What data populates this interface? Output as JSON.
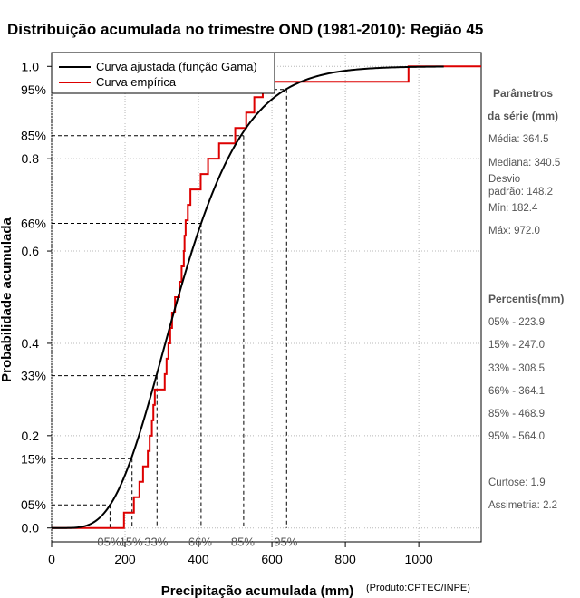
{
  "chart_data": {
    "type": "line",
    "title": "Distribuição acumulada no trimestre OND (1981-2010): Região 45",
    "xlabel": "Precipitação acumulada (mm)",
    "ylabel": "Probabilidade acumulada",
    "credit": "(Produto:CPTEC/INPE)",
    "xlim": [
      0,
      1170
    ],
    "ylim": [
      -0.03,
      1.03
    ],
    "x_ticks": [
      {
        "value": 0,
        "label": "0"
      },
      {
        "value": 200,
        "label": "200"
      },
      {
        "value": 400,
        "label": "400"
      },
      {
        "value": 600,
        "label": "600"
      },
      {
        "value": 800,
        "label": "800"
      },
      {
        "value": 1000,
        "label": "1000"
      }
    ],
    "y_ticks": [
      {
        "value": 0.0,
        "label": "0.0"
      },
      {
        "value": 0.2,
        "label": "0.2"
      },
      {
        "value": 0.4,
        "label": "0.4"
      },
      {
        "value": 0.6,
        "label": "0.6"
      },
      {
        "value": 0.8,
        "label": "0.8"
      },
      {
        "value": 1.0,
        "label": "1.0"
      }
    ],
    "percentile_lines": [
      {
        "p": 0.05,
        "x": 159,
        "y_label": "05%",
        "x_label": "05%"
      },
      {
        "p": 0.15,
        "x": 219,
        "y_label": "15%",
        "x_label": "15%"
      },
      {
        "p": 0.33,
        "x": 287,
        "y_label": "33%",
        "x_label": "33%"
      },
      {
        "p": 0.66,
        "x": 407,
        "y_label": "66%",
        "x_label": "66%"
      },
      {
        "p": 0.85,
        "x": 523,
        "y_label": "85%",
        "x_label": "85%"
      },
      {
        "p": 0.95,
        "x": 640,
        "y_label": "95%",
        "x_label": "95%"
      }
    ],
    "series": [
      {
        "name": "Curva ajustada (função Gama)",
        "color": "#000000",
        "kind": "gamma_cdf",
        "mean": 364.5,
        "sd": 148.2,
        "x_range": [
          0,
          1070
        ]
      },
      {
        "name": "Curva empírica",
        "color": "#dd0000",
        "kind": "step",
        "x_end": 1170,
        "points": [
          {
            "x": 182.4,
            "y": 0.0
          },
          {
            "x": 197,
            "y": 0.0333
          },
          {
            "x": 224,
            "y": 0.0667
          },
          {
            "x": 239,
            "y": 0.1
          },
          {
            "x": 249,
            "y": 0.1333
          },
          {
            "x": 262,
            "y": 0.1667
          },
          {
            "x": 267,
            "y": 0.2
          },
          {
            "x": 273,
            "y": 0.2333
          },
          {
            "x": 277,
            "y": 0.2667
          },
          {
            "x": 281,
            "y": 0.3
          },
          {
            "x": 308,
            "y": 0.3333
          },
          {
            "x": 313,
            "y": 0.3667
          },
          {
            "x": 318,
            "y": 0.4
          },
          {
            "x": 323,
            "y": 0.4333
          },
          {
            "x": 328,
            "y": 0.4667
          },
          {
            "x": 336,
            "y": 0.5
          },
          {
            "x": 348,
            "y": 0.5333
          },
          {
            "x": 354,
            "y": 0.5667
          },
          {
            "x": 360,
            "y": 0.6
          },
          {
            "x": 362,
            "y": 0.6333
          },
          {
            "x": 365,
            "y": 0.6667
          },
          {
            "x": 371,
            "y": 0.7
          },
          {
            "x": 378,
            "y": 0.7333
          },
          {
            "x": 406,
            "y": 0.7667
          },
          {
            "x": 426,
            "y": 0.8
          },
          {
            "x": 456,
            "y": 0.8333
          },
          {
            "x": 500,
            "y": 0.8667
          },
          {
            "x": 530,
            "y": 0.9
          },
          {
            "x": 552,
            "y": 0.9333
          },
          {
            "x": 575,
            "y": 0.9667
          },
          {
            "x": 972,
            "y": 1.0
          }
        ]
      }
    ],
    "legend_position": "top-left",
    "grid": true
  },
  "side_panel": {
    "params_title_1": "Parâmetros",
    "params_title_2": "da série (mm)",
    "media": "Média: 364.5",
    "mediana": "Mediana: 340.5",
    "desvio_1": "Desvio",
    "desvio_2": "padrão: 148.2",
    "min": "Mín: 182.4",
    "max": "Máx: 972.0",
    "percentis_title": "Percentis(mm)",
    "p05": "05% - 223.9",
    "p15": "15% - 247.0",
    "p33": "33% - 308.5",
    "p66": "66% - 364.1",
    "p85": "85% - 468.9",
    "p95": "95% - 564.0",
    "curtose": "Curtose: 1.9",
    "assimetria": "Assimetria: 2.2"
  }
}
